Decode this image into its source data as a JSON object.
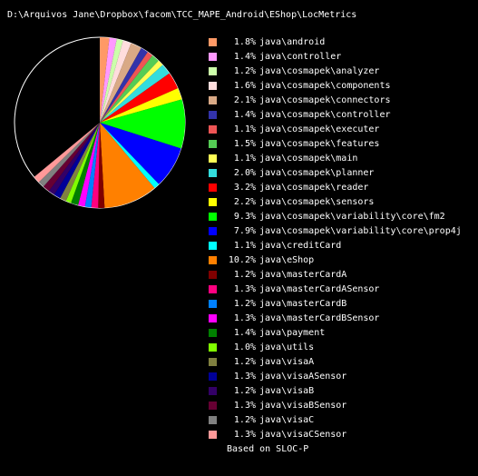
{
  "chart_data": {
    "type": "pie",
    "title": "D:\\Arquivos Jane\\Dropbox\\facom\\TCC_MAPE_Android\\EShop\\LocMetrics",
    "footer": "Based on SLOC-P",
    "remainder_color": "#000000",
    "slices": [
      {
        "label": "java\\android",
        "percent": 1.8,
        "percent_label": "1.8%",
        "color": "#ff9966"
      },
      {
        "label": "java\\controller",
        "percent": 1.4,
        "percent_label": "1.4%",
        "color": "#ff99ff"
      },
      {
        "label": "java\\cosmapek\\analyzer",
        "percent": 1.2,
        "percent_label": "1.2%",
        "color": "#ccffaa"
      },
      {
        "label": "java\\cosmapek\\components",
        "percent": 1.6,
        "percent_label": "1.6%",
        "color": "#ffdddd"
      },
      {
        "label": "java\\cosmapek\\connectors",
        "percent": 2.1,
        "percent_label": "2.1%",
        "color": "#d9a986"
      },
      {
        "label": "java\\cosmapek\\controller",
        "percent": 1.4,
        "percent_label": "1.4%",
        "color": "#3333aa"
      },
      {
        "label": "java\\cosmapek\\executer",
        "percent": 1.1,
        "percent_label": "1.1%",
        "color": "#ee5555"
      },
      {
        "label": "java\\cosmapek\\features",
        "percent": 1.5,
        "percent_label": "1.5%",
        "color": "#55cc55"
      },
      {
        "label": "java\\cosmapek\\main",
        "percent": 1.1,
        "percent_label": "1.1%",
        "color": "#ffff55"
      },
      {
        "label": "java\\cosmapek\\planner",
        "percent": 2.0,
        "percent_label": "2.0%",
        "color": "#33dddd"
      },
      {
        "label": "java\\cosmapek\\reader",
        "percent": 3.2,
        "percent_label": "3.2%",
        "color": "#ff0000"
      },
      {
        "label": "java\\cosmapek\\sensors",
        "percent": 2.2,
        "percent_label": "2.2%",
        "color": "#ffff00"
      },
      {
        "label": "java\\cosmapek\\variability\\core\\fm2",
        "percent": 9.3,
        "percent_label": "9.3%",
        "color": "#00ff00"
      },
      {
        "label": "java\\cosmapek\\variability\\core\\prop4j",
        "percent": 7.9,
        "percent_label": "7.9%",
        "color": "#0000ff"
      },
      {
        "label": "java\\creditCard",
        "percent": 1.1,
        "percent_label": "1.1%",
        "color": "#00ffff"
      },
      {
        "label": "java\\eShop",
        "percent": 10.2,
        "percent_label": "10.2%",
        "color": "#ff8000"
      },
      {
        "label": "java\\masterCardA",
        "percent": 1.2,
        "percent_label": "1.2%",
        "color": "#800000"
      },
      {
        "label": "java\\masterCardASensor",
        "percent": 1.3,
        "percent_label": "1.3%",
        "color": "#ff0080"
      },
      {
        "label": "java\\masterCardB",
        "percent": 1.2,
        "percent_label": "1.2%",
        "color": "#0080ff"
      },
      {
        "label": "java\\masterCardBSensor",
        "percent": 1.3,
        "percent_label": "1.3%",
        "color": "#ff00ff"
      },
      {
        "label": "java\\payment",
        "percent": 1.4,
        "percent_label": "1.4%",
        "color": "#008000"
      },
      {
        "label": "java\\utils",
        "percent": 1.0,
        "percent_label": "1.0%",
        "color": "#80ff00"
      },
      {
        "label": "java\\visaA",
        "percent": 1.2,
        "percent_label": "1.2%",
        "color": "#808040"
      },
      {
        "label": "java\\visaASensor",
        "percent": 1.3,
        "percent_label": "1.3%",
        "color": "#000099"
      },
      {
        "label": "java\\visaB",
        "percent": 1.2,
        "percent_label": "1.2%",
        "color": "#330066"
      },
      {
        "label": "java\\visaBSensor",
        "percent": 1.3,
        "percent_label": "1.3%",
        "color": "#660033"
      },
      {
        "label": "java\\visaC",
        "percent": 1.2,
        "percent_label": "1.2%",
        "color": "#808080"
      },
      {
        "label": "java\\visaCSensor",
        "percent": 1.3,
        "percent_label": "1.3%",
        "color": "#ff9999"
      }
    ]
  }
}
